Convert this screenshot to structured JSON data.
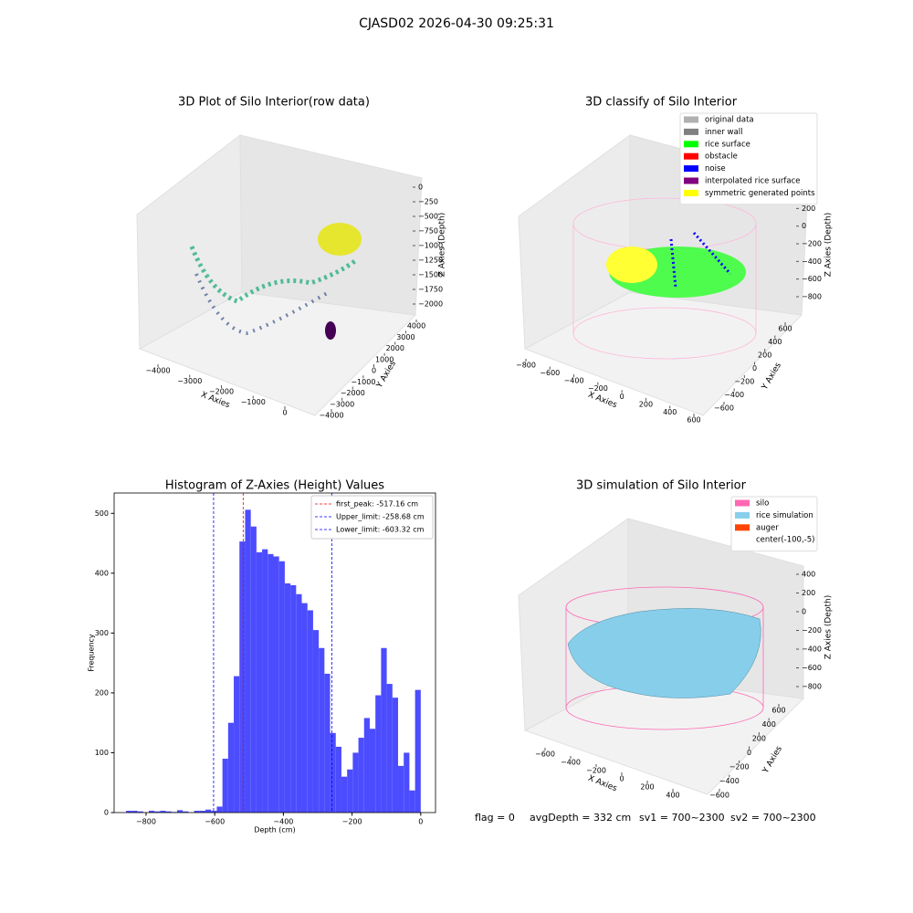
{
  "title": "CJASD02 2026-04-30 09:25:31",
  "footer": [
    "flag = 0",
    "avgDepth = 332 cm",
    "sv1 = 700~2300",
    "sv2 = 700~2300"
  ],
  "chart_data": [
    {
      "type": "scatter3d",
      "title": "3D Plot of Silo Interior(row data)",
      "xlabel": "X Axies",
      "ylabel": "Y Axies",
      "zlabel": "Z Axies (Depth)",
      "xticks": [
        {
          "value": -4000,
          "label": "−4000"
        },
        {
          "value": -3000,
          "label": "−3000"
        },
        {
          "value": -2000,
          "label": "−2000"
        },
        {
          "value": -1000,
          "label": "−1000"
        },
        0
      ],
      "yticks": [
        {
          "value": -4000,
          "label": "−4000"
        },
        {
          "value": -3000,
          "label": "−3000"
        },
        {
          "value": -2000,
          "label": "−2000"
        },
        {
          "value": -1000,
          "label": "−1000"
        },
        0,
        1000,
        2000,
        3000,
        4000
      ],
      "zticks": [
        0,
        {
          "value": -250,
          "label": "−250"
        },
        {
          "value": -500,
          "label": "−500"
        },
        {
          "value": -750,
          "label": "−750"
        },
        {
          "value": -1000,
          "label": "−1000"
        },
        {
          "value": -1250,
          "label": "−1250"
        },
        {
          "value": -1500,
          "label": "−1500"
        },
        {
          "value": -1750,
          "label": "−1750"
        },
        {
          "value": -2000,
          "label": "−2000"
        }
      ]
    },
    {
      "type": "scatter3d",
      "title": "3D classify of Silo Interior",
      "xlabel": "X Axies",
      "ylabel": "Y Axies",
      "zlabel": "Z Axies (Depth)",
      "xticks": [
        {
          "value": -800,
          "label": "−800"
        },
        {
          "value": -600,
          "label": "−600"
        },
        {
          "value": -400,
          "label": "−400"
        },
        {
          "value": -200,
          "label": "−200"
        },
        0,
        200,
        400,
        600
      ],
      "yticks": [
        {
          "value": -600,
          "label": "−600"
        },
        {
          "value": -400,
          "label": "−400"
        },
        {
          "value": -200,
          "label": "−200"
        },
        0,
        200,
        400,
        600
      ],
      "zticks": [
        400,
        200,
        0,
        {
          "value": -200,
          "label": "−200"
        },
        {
          "value": -400,
          "label": "−400"
        },
        {
          "value": -600,
          "label": "−600"
        },
        {
          "value": -800,
          "label": "−800"
        }
      ],
      "legend_loc": "upper right",
      "legend": [
        {
          "name": "original data",
          "color": "#b0b0b0"
        },
        {
          "name": "inner wall",
          "color": "#808080"
        },
        {
          "name": "rice surface",
          "color": "#00ff00"
        },
        {
          "name": "obstacle",
          "color": "#ff0000"
        },
        {
          "name": "noise",
          "color": "#0000ff"
        },
        {
          "name": "interpolated rice surface",
          "color": "#800080"
        },
        {
          "name": "symmetric generated points",
          "color": "#ffff00"
        }
      ]
    },
    {
      "type": "histogram",
      "title": "Histogram of Z-Axies (Height) Values",
      "xlabel": "Depth (cm)",
      "ylabel": "Frequency",
      "color": "#4c4cff",
      "bins": [
        -858,
        -841.5,
        -825,
        -808.5,
        -792,
        -775.5,
        -759,
        -742.5,
        -726,
        -709.5,
        -693,
        -676.5,
        -660,
        -643.5,
        -627,
        -610.5,
        -594,
        -577.5,
        -561,
        -544.5,
        -528,
        -511.5,
        -495,
        -478.5,
        -462,
        -445.5,
        -429,
        -412.5,
        -396,
        -379.5,
        -363,
        -346.5,
        -330,
        -313.5,
        -297,
        -280.5,
        -264,
        -247.5,
        -231,
        -214.5,
        -198,
        -181.5,
        -165,
        -148.5,
        -132,
        -115.5,
        -99,
        -82.5,
        -66,
        -49.5,
        -33,
        -16.5,
        0
      ],
      "counts": [
        3,
        3,
        2,
        0,
        3,
        2,
        3,
        2,
        1,
        4,
        2,
        0,
        3,
        3,
        5,
        3,
        10,
        90,
        150,
        228,
        453,
        506,
        478,
        435,
        440,
        432,
        428,
        420,
        383,
        380,
        365,
        350,
        338,
        305,
        275,
        232,
        133,
        110,
        60,
        72,
        100,
        125,
        158,
        140,
        196,
        275,
        215,
        192,
        78,
        100,
        37,
        205
      ],
      "xlim": [
        -893,
        43
      ],
      "ylim": [
        0,
        534
      ],
      "xticks": [
        {
          "value": -800,
          "label": "−800"
        },
        {
          "value": -600,
          "label": "−600"
        },
        {
          "value": -400,
          "label": "−400"
        },
        {
          "value": -200,
          "label": "−200"
        },
        0
      ],
      "yticks": [
        0,
        100,
        200,
        300,
        400,
        500
      ],
      "legend_loc": "upper right",
      "lines": [
        {
          "name": "first_peak: -517.16 cm",
          "x": -517.16,
          "color": "#ff0000"
        },
        {
          "name": "Upper_limit: -258.68 cm",
          "x": -258.68,
          "color": "#0000ff"
        },
        {
          "name": "Lower_limit: -603.32 cm",
          "x": -603.32,
          "color": "#0000ff"
        }
      ]
    },
    {
      "type": "surface3d",
      "title": "3D simulation of Silo Interior",
      "xlabel": "X Axies",
      "ylabel": "Y Axies",
      "zlabel": "Z Axies (Depth)",
      "xticks": [
        {
          "value": -600,
          "label": "−600"
        },
        {
          "value": -400,
          "label": "−400"
        },
        {
          "value": -200,
          "label": "−200"
        },
        0,
        200,
        400
      ],
      "yticks": [
        {
          "value": -600,
          "label": "−600"
        },
        {
          "value": -400,
          "label": "−400"
        },
        {
          "value": -200,
          "label": "−200"
        },
        0,
        200,
        400,
        600
      ],
      "zticks": [
        400,
        200,
        0,
        {
          "value": -200,
          "label": "−200"
        },
        {
          "value": -400,
          "label": "−400"
        },
        {
          "value": -600,
          "label": "−600"
        },
        {
          "value": -800,
          "label": "−800"
        }
      ],
      "legend_loc": "upper right",
      "legend": [
        {
          "name": "silo",
          "color": "#ff69b4"
        },
        {
          "name": "rice simulation",
          "color": "#87ceeb"
        },
        {
          "name": "auger",
          "color": "#ff4500"
        },
        {
          "name": "center(-100,-5)",
          "color": null
        }
      ]
    }
  ]
}
